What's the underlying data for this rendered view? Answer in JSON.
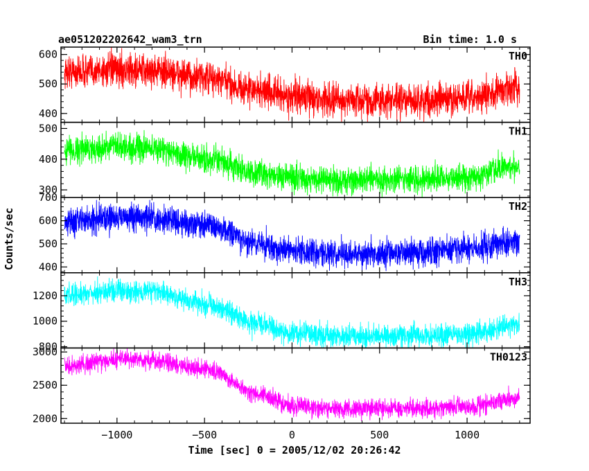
{
  "header": {
    "left_title": "ae051202202642_wam3_trn",
    "right_title": "Bin time: 1.0 s"
  },
  "chart_data": {
    "type": "line",
    "title": "ae051202202642_wam3_trn",
    "subtitle": "Bin time: 1.0 s",
    "xlabel": "Time [sec] 0 = 2005/12/02 20:26:42",
    "ylabel": "Counts/sec",
    "xlim": [
      -1320,
      1360
    ],
    "x_ticks": [
      -1000,
      -500,
      0,
      500,
      1000
    ],
    "x_ticklabels": [
      "−1000",
      "−500",
      "0",
      "500",
      "1000"
    ],
    "x_range_data": [
      -1300,
      1300
    ],
    "panels": [
      {
        "name": "TH0",
        "color": "#ff0000",
        "ylim": [
          370,
          625
        ],
        "yticks": [
          400,
          500,
          600
        ],
        "x": [
          -1300,
          -1000,
          -800,
          -500,
          -200,
          0,
          300,
          700,
          1000,
          1300
        ],
        "values": [
          540,
          548,
          545,
          520,
          478,
          458,
          445,
          443,
          450,
          490
        ],
        "noise": 28
      },
      {
        "name": "TH1",
        "color": "#00ff00",
        "ylim": [
          275,
          520
        ],
        "yticks": [
          300,
          400,
          500
        ],
        "x": [
          -1300,
          -1000,
          -800,
          -500,
          -200,
          0,
          300,
          700,
          1000,
          1300
        ],
        "values": [
          430,
          440,
          435,
          400,
          355,
          340,
          330,
          335,
          340,
          380
        ],
        "noise": 22
      },
      {
        "name": "TH2",
        "color": "#0000ff",
        "ylim": [
          375,
          700
        ],
        "yticks": [
          400,
          500,
          600,
          700
        ],
        "x": [
          -1300,
          -1000,
          -800,
          -500,
          -200,
          0,
          300,
          700,
          1000,
          1300
        ],
        "values": [
          600,
          615,
          610,
          585,
          500,
          470,
          455,
          465,
          480,
          510
        ],
        "noise": 30
      },
      {
        "name": "TH3",
        "color": "#00ffff",
        "ylim": [
          790,
          1380
        ],
        "yticks": [
          800,
          1000,
          1200
        ],
        "x": [
          -1300,
          -1000,
          -800,
          -500,
          -200,
          0,
          300,
          700,
          1000,
          1300
        ],
        "values": [
          1200,
          1240,
          1230,
          1140,
          980,
          910,
          880,
          885,
          900,
          960
        ],
        "noise": 45
      },
      {
        "name": "TH0123",
        "color": "#ff00ff",
        "ylim": [
          1930,
          3060
        ],
        "yticks": [
          2000,
          2500,
          3000
        ],
        "x": [
          -1300,
          -1000,
          -800,
          -500,
          -200,
          0,
          300,
          700,
          1000,
          1300
        ],
        "values": [
          2780,
          2890,
          2880,
          2740,
          2380,
          2200,
          2140,
          2150,
          2180,
          2310
        ],
        "noise": 70
      }
    ]
  }
}
